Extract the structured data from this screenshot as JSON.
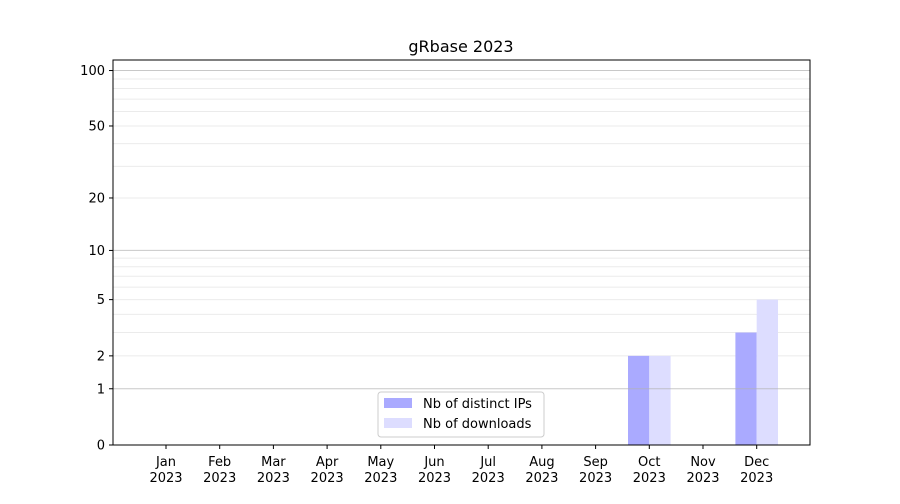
{
  "chart_data": {
    "type": "bar",
    "title": "gRbase 2023",
    "xlabel": "",
    "ylabel": "",
    "yscale": "log(1+x)",
    "ylim": [
      0,
      114
    ],
    "yticks": [
      0,
      1,
      2,
      5,
      10,
      20,
      50,
      100
    ],
    "grid": true,
    "legend_placement": "lower-center",
    "categories": [
      "Jan\n2023",
      "Feb\n2023",
      "Mar\n2023",
      "Apr\n2023",
      "May\n2023",
      "Jun\n2023",
      "Jul\n2023",
      "Aug\n2023",
      "Sep\n2023",
      "Oct\n2023",
      "Nov\n2023",
      "Dec\n2023"
    ],
    "series": [
      {
        "name": "Nb of distinct IPs",
        "color": "#aaaaff",
        "values": [
          0,
          0,
          0,
          0,
          0,
          0,
          0,
          0,
          0,
          2,
          0,
          3
        ]
      },
      {
        "name": "Nb of downloads",
        "color": "#ddddff",
        "values": [
          0,
          0,
          0,
          0,
          0,
          0,
          0,
          0,
          0,
          2,
          0,
          5
        ]
      }
    ]
  }
}
